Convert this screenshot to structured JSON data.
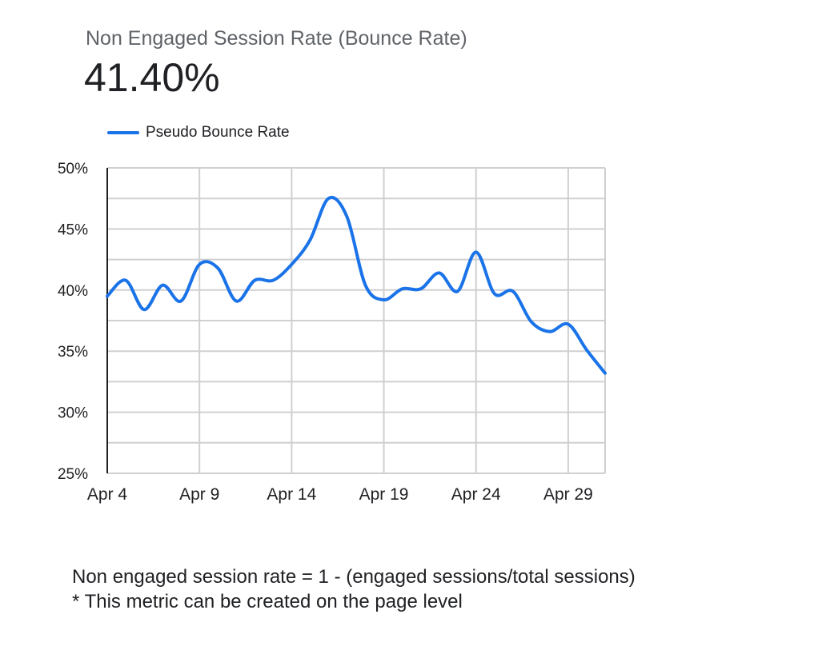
{
  "scorecard": {
    "title": "Non Engaged Session Rate (Bounce Rate)",
    "value": "41.40%"
  },
  "chart_data": {
    "type": "line",
    "title": "",
    "xlabel": "",
    "ylabel": "",
    "ylim": [
      25,
      50
    ],
    "yticks": [
      "25%",
      "30%",
      "35%",
      "40%",
      "45%",
      "50%"
    ],
    "xtick_labels": [
      "Apr 4",
      "Apr 9",
      "Apr 14",
      "Apr 19",
      "Apr 24",
      "Apr 29"
    ],
    "legend": "top-left",
    "color": "#1a73e8",
    "x": [
      "Apr 4",
      "Apr 5",
      "Apr 6",
      "Apr 7",
      "Apr 8",
      "Apr 9",
      "Apr 10",
      "Apr 11",
      "Apr 12",
      "Apr 13",
      "Apr 14",
      "Apr 15",
      "Apr 16",
      "Apr 17",
      "Apr 18",
      "Apr 19",
      "Apr 20",
      "Apr 21",
      "Apr 22",
      "Apr 23",
      "Apr 24",
      "Apr 25",
      "Apr 26",
      "Apr 27",
      "Apr 28",
      "Apr 29",
      "Apr 30",
      "May 1"
    ],
    "series": [
      {
        "name": "Pseudo Bounce Rate",
        "values": [
          39.5,
          40.8,
          38.4,
          40.4,
          39.1,
          42.1,
          41.8,
          39.1,
          40.8,
          40.8,
          42.1,
          44.1,
          47.5,
          46.0,
          40.4,
          39.2,
          40.1,
          40.1,
          41.4,
          39.9,
          43.1,
          39.7,
          39.9,
          37.4,
          36.6,
          37.2,
          35.1,
          33.2
        ]
      }
    ]
  },
  "notes": [
    "Non engaged session rate = 1 - (engaged sessions/total sessions)",
    "* This metric can be created on the page level"
  ]
}
